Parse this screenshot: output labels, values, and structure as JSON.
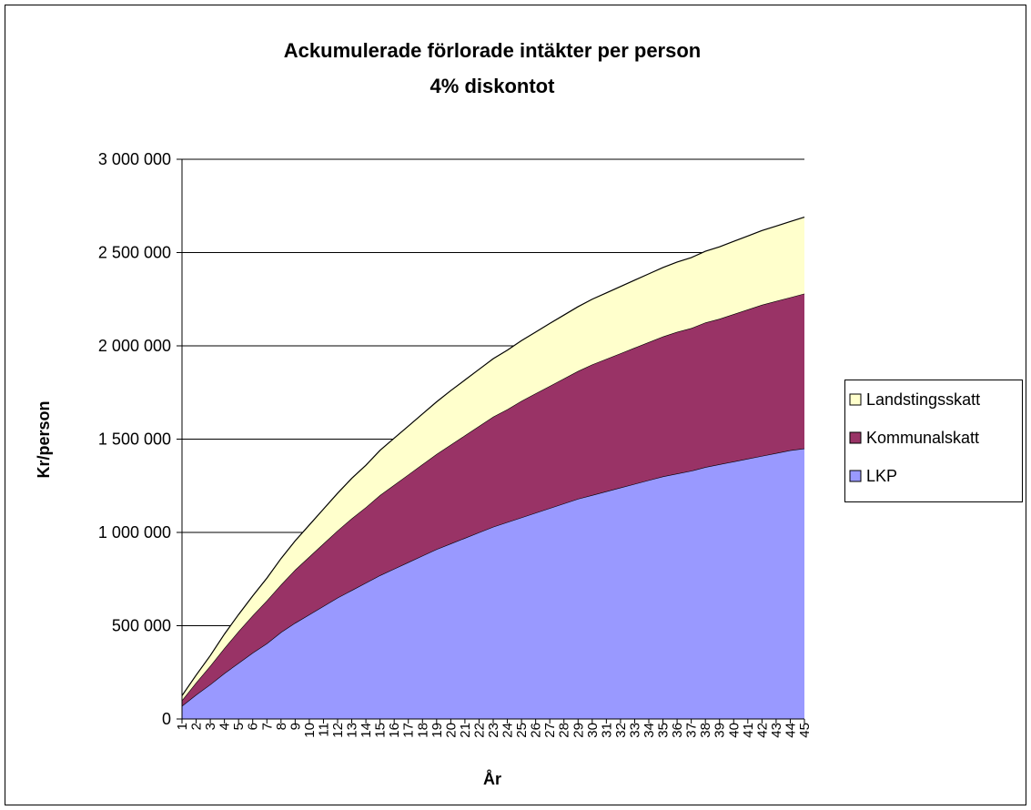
{
  "chart_data": {
    "type": "stacked_area",
    "title": "Ackumulerade förlorade intäkter per person",
    "subtitle": "4% diskontot",
    "x_label": "År",
    "y_label": "Kr/person",
    "categories": [
      "1",
      "2",
      "3",
      "4",
      "5",
      "6",
      "7",
      "8",
      "9",
      "10",
      "11",
      "12",
      "13",
      "14",
      "15",
      "16",
      "17",
      "18",
      "19",
      "20",
      "21",
      "22",
      "23",
      "24",
      "25",
      "26",
      "27",
      "28",
      "29",
      "30",
      "31",
      "32",
      "33",
      "34",
      "35",
      "36",
      "37",
      "38",
      "39",
      "40",
      "41",
      "42",
      "43",
      "44",
      "45"
    ],
    "series": [
      {
        "name": "LKP",
        "color": "#9999ff",
        "values": [
          70000,
          130000,
          185000,
          245000,
          300000,
          355000,
          405000,
          465000,
          515000,
          560000,
          605000,
          650000,
          690000,
          730000,
          770000,
          805000,
          840000,
          875000,
          910000,
          940000,
          970000,
          1000000,
          1030000,
          1055000,
          1080000,
          1105000,
          1130000,
          1155000,
          1180000,
          1200000,
          1220000,
          1240000,
          1260000,
          1280000,
          1300000,
          1315000,
          1330000,
          1350000,
          1365000,
          1380000,
          1395000,
          1410000,
          1425000,
          1440000,
          1450000
        ]
      },
      {
        "name": "Kommunalskatt",
        "color": "#993366",
        "values": [
          30000,
          65000,
          100000,
          135000,
          170000,
          200000,
          230000,
          255000,
          285000,
          310000,
          335000,
          360000,
          385000,
          405000,
          430000,
          450000,
          470000,
          490000,
          510000,
          530000,
          550000,
          570000,
          590000,
          605000,
          625000,
          640000,
          655000,
          670000,
          685000,
          700000,
          710000,
          720000,
          730000,
          740000,
          750000,
          760000,
          765000,
          775000,
          780000,
          790000,
          800000,
          810000,
          815000,
          820000,
          830000
        ]
      },
      {
        "name": "Landstingsskatt",
        "color": "#ffffcc",
        "values": [
          25000,
          40000,
          55000,
          75000,
          90000,
          105000,
          120000,
          140000,
          155000,
          170000,
          185000,
          200000,
          215000,
          225000,
          240000,
          250000,
          260000,
          270000,
          280000,
          290000,
          297000,
          304000,
          311000,
          317000,
          323000,
          329000,
          335000,
          340000,
          345000,
          350000,
          354000,
          358000,
          362000,
          366000,
          370000,
          374000,
          378000,
          382000,
          386000,
          390000,
          394000,
          398000,
          402000,
          406000,
          410000
        ]
      }
    ],
    "ylim": [
      0,
      3000000
    ],
    "yticks": [
      0,
      {
        "value": 500000,
        "label": "500 000"
      },
      {
        "value": 1000000,
        "label": "1 000 000"
      },
      {
        "value": 1500000,
        "label": "1 500 000"
      },
      {
        "value": 2000000,
        "label": "2 000 000"
      },
      {
        "value": 2500000,
        "label": "2 500 000"
      },
      {
        "value": 3000000,
        "label": "3 000 000"
      }
    ],
    "grid": true,
    "legend": "right"
  }
}
